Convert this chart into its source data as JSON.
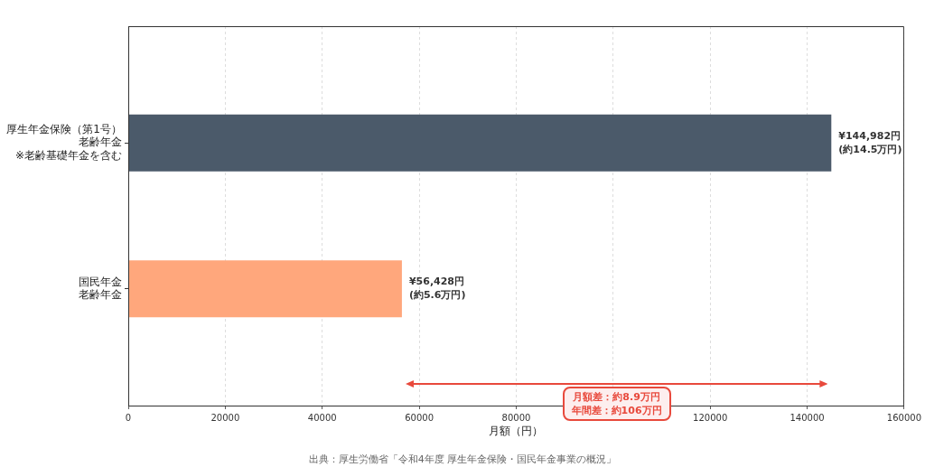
{
  "chart_data": {
    "type": "bar",
    "orientation": "horizontal",
    "categories": [
      "厚生年金保険（第1号）老齢年金※老齢基礎年金を含む",
      "国民年金老齢年金"
    ],
    "values": [
      144982,
      56428
    ],
    "colors": [
      "#4b5a6a",
      "#ffa77c"
    ],
    "value_labels": [
      "¥144,982円\n(約14.5万円)",
      "¥56,428円\n(約5.6万円)"
    ],
    "xlabel": "月額（円）",
    "xlim": [
      0,
      160000
    ],
    "xticks": [
      0,
      20000,
      40000,
      60000,
      80000,
      {
        "value": 100000,
        "label": null
      },
      120000,
      140000,
      160000
    ],
    "grid": "x",
    "annotations": [
      "月額差：約8.9万円年間差：約106万円",
      "出典：厚生労働省「令和4年度 厚生年金保険・国民年金事業の概況」"
    ]
  }
}
